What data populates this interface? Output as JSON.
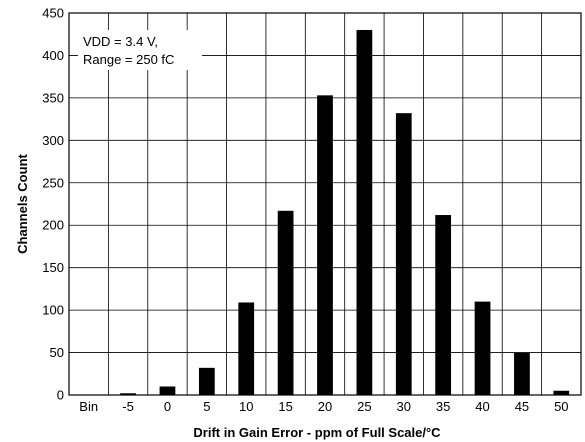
{
  "chart_data": {
    "type": "bar",
    "title": "",
    "xlabel": "Drift in Gain Error - ppm of Full Scale/°C",
    "ylabel": "Channels Count",
    "categories": [
      "Bin",
      "-5",
      "0",
      "5",
      "10",
      "15",
      "20",
      "25",
      "30",
      "35",
      "40",
      "45",
      "50"
    ],
    "values": [
      0,
      2,
      10,
      32,
      109,
      217,
      353,
      430,
      332,
      212,
      110,
      50,
      5
    ],
    "ylim": [
      0,
      450
    ],
    "yticks": [
      0,
      50,
      100,
      150,
      200,
      250,
      300,
      350,
      400,
      450
    ],
    "grid": true,
    "bar_color": "#000000",
    "annotation": [
      "VDD = 3.4 V,",
      "Range = 250 fC"
    ]
  }
}
